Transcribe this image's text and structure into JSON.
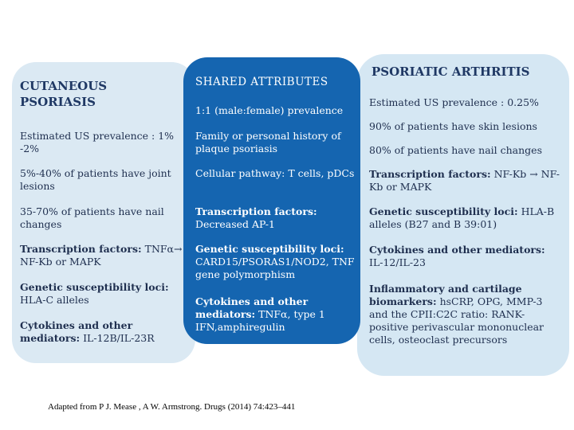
{
  "columns": [
    {
      "title": "CUTANEOUS PSORIASIS",
      "items": [
        {
          "text": "Estimated US prevalence : 1% -2%"
        },
        {
          "text": "5%-40% of patients have joint lesions"
        },
        {
          "text": "35-70% of patients have nail changes"
        },
        {
          "label": "Transcription factors:",
          "text": "TNFα→ NF-Kb or MAPK"
        },
        {
          "label": "Genetic susceptibility loci:",
          "text": "HLA-C alleles"
        },
        {
          "label": "Cytokines and other mediators:",
          "text": "IL-12B/IL-23R"
        }
      ]
    },
    {
      "title": "SHARED ATTRIBUTES",
      "items": [
        {
          "text": "1:1 (male:female) prevalence"
        },
        {
          "text": "Family or personal history of plaque psoriasis"
        },
        {
          "text": "Cellular pathway: T cells, pDCs"
        },
        {
          "label": "Transcription factors:",
          "text": "Decreased AP-1"
        },
        {
          "label": "Genetic susceptibility loci:",
          "text": "CARD15/PSORAS1/NOD2, TNF gene polymorphism"
        },
        {
          "label": "Cytokines and other mediators:",
          "text": "TNFα, type 1 IFN,amphiregulin"
        }
      ]
    },
    {
      "title": "PSORIATIC ARTHRITIS",
      "items": [
        {
          "text": "Estimated US prevalence : 0.25%"
        },
        {
          "text": "90% of patients have skin lesions"
        },
        {
          "text": "80% of patients have nail changes"
        },
        {
          "label": "Transcription factors:",
          "text": "NF-Kb → NF-Kb or MAPK"
        },
        {
          "label": "Genetic susceptibility loci:",
          "text": "HLA-B alleles (B27 and B 39:01)"
        },
        {
          "label": "Cytokines and other mediators:",
          "text": "IL-12/IL-23"
        },
        {
          "label": "Inflammatory and cartilage biomarkers:",
          "text": "hsCRP, OPG, MMP-3 and the CPII:C2C ratio: RANK-positive perivascular mononuclear cells, osteoclast precursors"
        }
      ]
    }
  ],
  "footer": {
    "citation": "Adapted from P J. Mease , A W. Armstrong. Drugs (2014) 74:423–441"
  }
}
